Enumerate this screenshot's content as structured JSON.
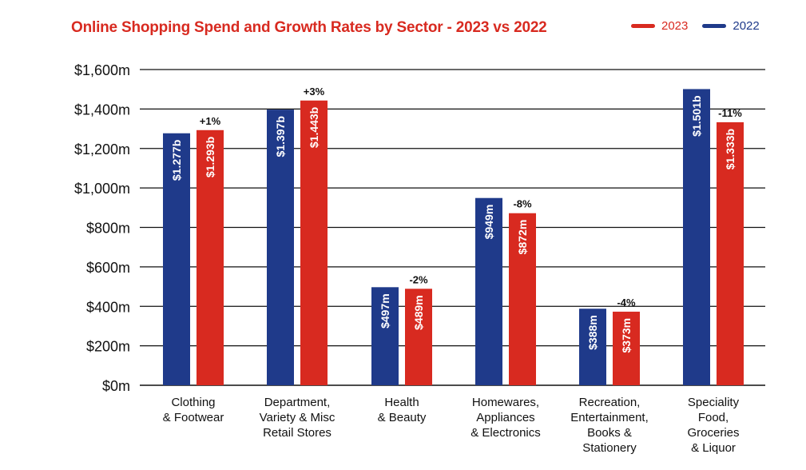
{
  "chart_data": {
    "type": "bar",
    "title": "Online Shopping Spend and Growth Rates by Sector - 2023 vs 2022",
    "ylabel": "",
    "xlabel": "",
    "ylim": [
      0,
      1600
    ],
    "yticks": [
      0,
      200,
      400,
      600,
      800,
      1000,
      1200,
      1400,
      1600
    ],
    "ytick_labels": [
      "$0m",
      "$200m",
      "$400m",
      "$600m",
      "$800m",
      "$1,000m",
      "$1,200m",
      "$1,400m",
      "$1,600m"
    ],
    "grid": true,
    "legend_position": "top-right",
    "categories": [
      [
        "Clothing",
        "& Footwear"
      ],
      [
        "Department,",
        "Variety & Misc",
        "Retail Stores"
      ],
      [
        "Health",
        "& Beauty"
      ],
      [
        "Homewares,",
        "Appliances",
        "& Electronics"
      ],
      [
        "Recreation,",
        "Entertainment,",
        "Books &",
        "Stationery"
      ],
      [
        "Speciality",
        "Food,",
        "Groceries",
        "& Liquor"
      ]
    ],
    "series": [
      {
        "name": "2022",
        "color": "#1f3a8a",
        "values": [
          1277,
          1397,
          497,
          949,
          388,
          1501
        ],
        "labels": [
          "$1.277b",
          "$1.397b",
          "$497m",
          "$949m",
          "$388m",
          "$1.501b"
        ]
      },
      {
        "name": "2023",
        "color": "#d82a20",
        "values": [
          1293,
          1443,
          489,
          872,
          373,
          1333
        ],
        "labels": [
          "$1.293b",
          "$1.443b",
          "$489m",
          "$872m",
          "$373m",
          "$1.333b"
        ]
      }
    ],
    "growth_labels": [
      "+1%",
      "+3%",
      "-2%",
      "-8%",
      "-4%",
      "-11%"
    ]
  },
  "legend": [
    {
      "label": "2023",
      "color": "#d82a20"
    },
    {
      "label": "2022",
      "color": "#1f3a8a"
    }
  ]
}
